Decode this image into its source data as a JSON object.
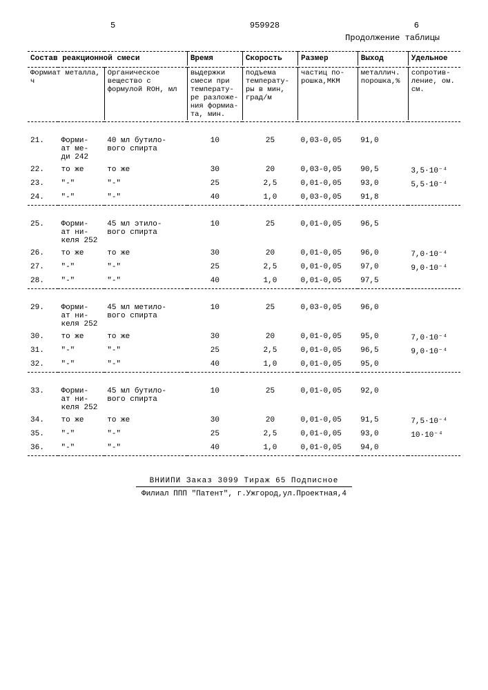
{
  "header": {
    "col_left": "5",
    "doc_number": "959928",
    "col_right": "6",
    "continuation": "Продолжение таблицы"
  },
  "table": {
    "top_headers": {
      "composition": "Состав реакционной смеси",
      "time": "Время",
      "rate": "Скорость",
      "size": "Размер",
      "yield": "Выход",
      "resist": "Удельное"
    },
    "sub_headers": {
      "formiat": "Формиат металла, ч",
      "organic": "Органическое вещество с формулой ROH, мл",
      "time": "выдержки смеси при температу-ре разложе-ния формиа-та, мин.",
      "rate": "подъема температу-ры в мин, град/м",
      "size": "частиц по-рошка,МКМ",
      "yield": "металлич. порошка,%",
      "resist": "сопротив-ление, ом. см."
    },
    "groups": [
      {
        "rows": [
          {
            "n": "21.",
            "f": "Форми-ат ме-ди 242",
            "o": "40 мл бутило-вого спирта",
            "t": "10",
            "r": "25",
            "s": "0,03-0,05",
            "y": "91,0",
            "res": ""
          },
          {
            "n": "22.",
            "f": "то же",
            "o": "то же",
            "t": "30",
            "r": "20",
            "s": "0,03-0,05",
            "y": "90,5",
            "res": "3,5·10⁻⁴"
          },
          {
            "n": "23.",
            "f": "\"-\"",
            "o": "\"-\"",
            "t": "25",
            "r": "2,5",
            "s": "0,01-0,05",
            "y": "93,0",
            "res": "5,5·10⁻⁴"
          },
          {
            "n": "24.",
            "f": "\"-\"",
            "o": "\"-\"",
            "t": "40",
            "r": "1,0",
            "s": "0,03-0,05",
            "y": "91,8",
            "res": ""
          }
        ]
      },
      {
        "rows": [
          {
            "n": "25.",
            "f": "Форми-ат ни-келя 252",
            "o": "45 мл этило-вого спирта",
            "t": "10",
            "r": "25",
            "s": "0,01-0,05",
            "y": "96,5",
            "res": ""
          },
          {
            "n": "26.",
            "f": "то же",
            "o": "то же",
            "t": "30",
            "r": "20",
            "s": "0,01-0,05",
            "y": "96,0",
            "res": "7,0·10⁻⁴"
          },
          {
            "n": "27.",
            "f": "\"-\"",
            "o": "\"-\"",
            "t": "25",
            "r": "2,5",
            "s": "0,01-0,05",
            "y": "97,0",
            "res": "9,0·10⁻⁴"
          },
          {
            "n": "28.",
            "f": "\"-\"",
            "o": "\"-\"",
            "t": "40",
            "r": "1,0",
            "s": "0,01-0,05",
            "y": "97,5",
            "res": ""
          }
        ]
      },
      {
        "rows": [
          {
            "n": "29.",
            "f": "Форми-ат ни-келя 252",
            "o": "45 мл метило-вого спирта",
            "t": "10",
            "r": "25",
            "s": "0,03-0,05",
            "y": "96,0",
            "res": ""
          },
          {
            "n": "30.",
            "f": "то же",
            "o": "то же",
            "t": "30",
            "r": "20",
            "s": "0,01-0,05",
            "y": "95,0",
            "res": "7,0·10⁻⁴"
          },
          {
            "n": "31.",
            "f": "\"-\"",
            "o": "\"-\"",
            "t": "25",
            "r": "2,5",
            "s": "0,01-0,05",
            "y": "96,5",
            "res": "9,0·10⁻⁴"
          },
          {
            "n": "32.",
            "f": "\"-\"",
            "o": "\"-\"",
            "t": "40",
            "r": "1,0",
            "s": "0,01-0,05",
            "y": "95,0",
            "res": ""
          }
        ]
      },
      {
        "rows": [
          {
            "n": "33.",
            "f": "Форми-ат ни-келя 252",
            "o": "45 мл бутило-вого спирта",
            "t": "10",
            "r": "25",
            "s": "0,01-0,05",
            "y": "92,0",
            "res": ""
          },
          {
            "n": "34.",
            "f": "то же",
            "o": "то же",
            "t": "30",
            "r": "20",
            "s": "0,01-0,05",
            "y": "91,5",
            "res": "7,5·10⁻⁴"
          },
          {
            "n": "35.",
            "f": "\"-\"",
            "o": "\"-\"",
            "t": "25",
            "r": "2,5",
            "s": "0,01-0,05",
            "y": "93,0",
            "res": "10·10⁻⁴"
          },
          {
            "n": "36.",
            "f": "\"-\"",
            "o": "\"-\"",
            "t": "40",
            "r": "1,0",
            "s": "0,01-0,05",
            "y": "94,0",
            "res": ""
          }
        ]
      }
    ]
  },
  "footer": {
    "line1": "ВНИИПИ   Заказ 3099   Тираж 65   Подписное",
    "line2": "Филиал ППП \"Патент\", г.Ужгород,ул.Проектная,4"
  }
}
